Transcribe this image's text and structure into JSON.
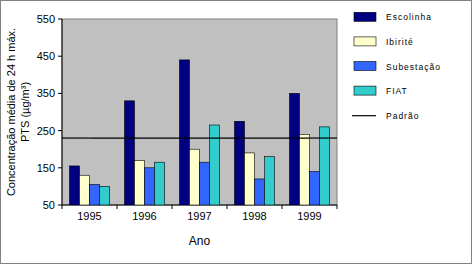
{
  "chart_data": {
    "type": "bar",
    "x_label": "Ano",
    "y_label": [
      "Concentração média de 24 h máx.",
      "PTS (µg/m³)"
    ],
    "categories": [
      "1995",
      "1996",
      "1997",
      "1998",
      "1999"
    ],
    "series": [
      {
        "name": "Escolinha",
        "color": "#000080",
        "values": [
          155,
          330,
          440,
          275,
          350
        ]
      },
      {
        "name": "Ibirité",
        "color": "#FFFFCC",
        "values": [
          130,
          170,
          200,
          190,
          240
        ]
      },
      {
        "name": "Subestação",
        "color": "#3366FF",
        "values": [
          105,
          150,
          165,
          120,
          140
        ]
      },
      {
        "name": "FIAT",
        "color": "#33CCCC",
        "values": [
          100,
          165,
          265,
          180,
          260
        ]
      },
      {
        "name": "Padrão",
        "type": "line",
        "color": "#000000",
        "values": [
          230,
          230,
          230,
          230,
          230
        ]
      }
    ],
    "ylim": [
      50,
      550
    ],
    "yticks": [
      50,
      150,
      250,
      350,
      450,
      550
    ],
    "grid": false,
    "legend": "right"
  }
}
